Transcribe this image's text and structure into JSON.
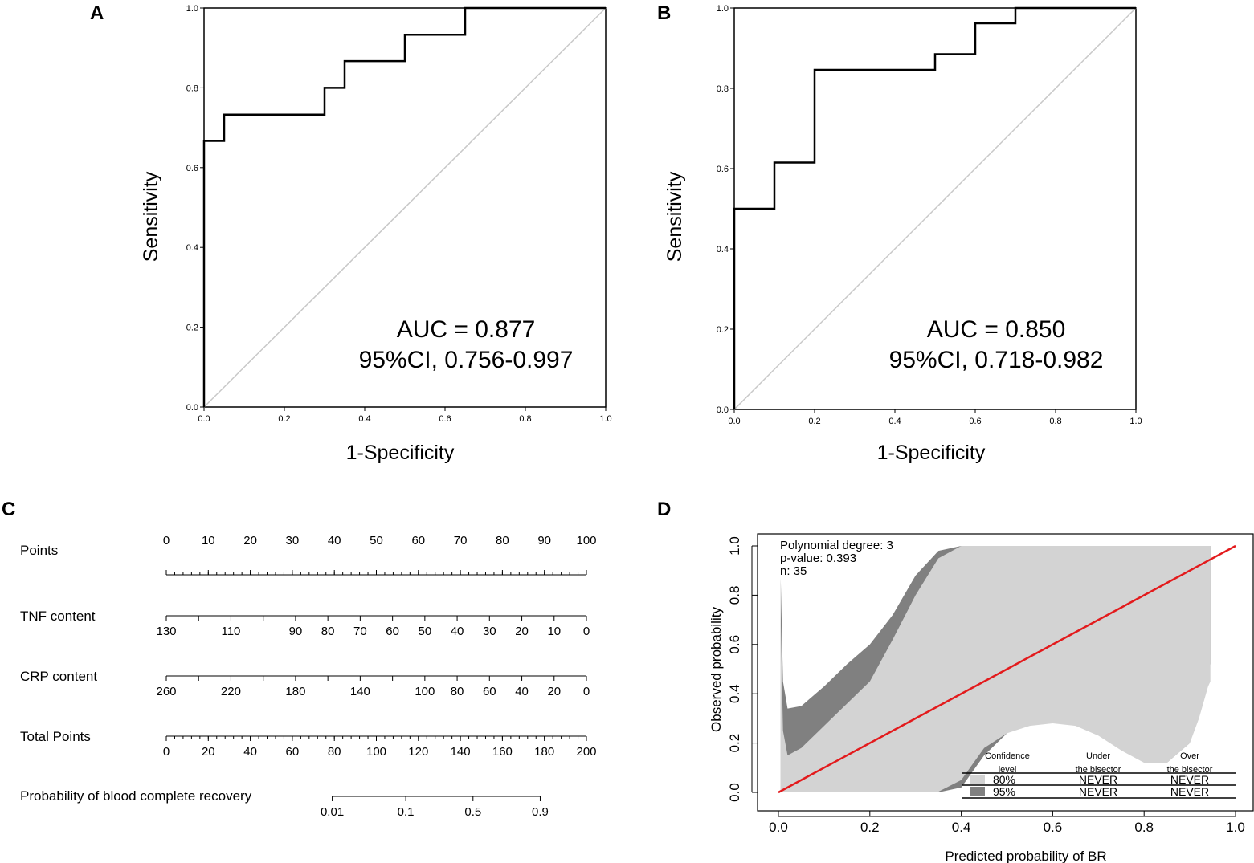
{
  "panels": {
    "A": {
      "letter": "A",
      "xlabel": "1-Specificity",
      "ylabel": "Sensitivity",
      "auc": "AUC = 0.877",
      "ci": "95%CI, 0.756-0.997"
    },
    "B": {
      "letter": "B",
      "xlabel": "1-Specificity",
      "ylabel": "Sensitivity",
      "auc": "AUC = 0.850",
      "ci": "95%CI, 0.718-0.982"
    },
    "C": {
      "letter": "C"
    },
    "D": {
      "letter": "D",
      "xlabel": "Predicted probability of BR",
      "ylabel": "Observed probability",
      "stats": [
        "Polynomial degree: 3",
        "p-value: 0.393",
        "n: 35"
      ],
      "legend": {
        "headers": [
          [
            "Confidence",
            "level"
          ],
          [
            "Under",
            "the bisector"
          ],
          [
            "Over",
            "the bisector"
          ]
        ],
        "rows": [
          {
            "level": "80%",
            "under": "NEVER",
            "over": "NEVER",
            "color": "#d3d3d3"
          },
          {
            "level": "95%",
            "under": "NEVER",
            "over": "NEVER",
            "color": "#808080"
          }
        ]
      }
    }
  },
  "chart_data": [
    {
      "type": "line",
      "panel": "A",
      "title": "",
      "xlabel": "1-Specificity",
      "ylabel": "Sensitivity",
      "xlim": [
        0,
        1
      ],
      "ylim": [
        0,
        1
      ],
      "xticks": [
        "0.0",
        "0.2",
        "0.4",
        "0.6",
        "0.8",
        "1.0"
      ],
      "yticks": [
        "0.0",
        "0.2",
        "0.4",
        "0.6",
        "0.8",
        "1.0"
      ],
      "series": [
        {
          "name": "ROC",
          "x": [
            0,
            0,
            0.05,
            0.05,
            0.3,
            0.3,
            0.35,
            0.35,
            0.5,
            0.5,
            0.65,
            0.65,
            1.0
          ],
          "y": [
            0,
            0.667,
            0.667,
            0.733,
            0.733,
            0.8,
            0.8,
            0.867,
            0.867,
            0.933,
            0.933,
            1.0,
            1.0
          ]
        },
        {
          "name": "reference",
          "x": [
            0,
            1
          ],
          "y": [
            0,
            1
          ]
        }
      ],
      "annotations": [
        "AUC = 0.877",
        "95%CI, 0.756-0.997"
      ]
    },
    {
      "type": "line",
      "panel": "B",
      "title": "",
      "xlabel": "1-Specificity",
      "ylabel": "Sensitivity",
      "xlim": [
        0,
        1
      ],
      "ylim": [
        0,
        1
      ],
      "xticks": [
        "0.0",
        "0.2",
        "0.4",
        "0.6",
        "0.8",
        "1.0"
      ],
      "yticks": [
        "0.0",
        "0.2",
        "0.4",
        "0.6",
        "0.8",
        "1.0"
      ],
      "series": [
        {
          "name": "ROC",
          "x": [
            0,
            0,
            0.1,
            0.1,
            0.2,
            0.2,
            0.5,
            0.5,
            0.6,
            0.6,
            0.7,
            0.7,
            1.0
          ],
          "y": [
            0,
            0.5,
            0.5,
            0.615,
            0.615,
            0.846,
            0.846,
            0.885,
            0.885,
            0.962,
            0.962,
            1.0,
            1.0
          ]
        },
        {
          "name": "reference",
          "x": [
            0,
            1
          ],
          "y": [
            0,
            1
          ]
        }
      ],
      "annotations": [
        "AUC = 0.850",
        "95%CI, 0.718-0.982"
      ]
    },
    {
      "type": "nomogram",
      "panel": "C",
      "axes": [
        {
          "label": "Points",
          "domain": [
            0,
            100
          ],
          "ticks": [
            {
              "t": "0",
              "v": 0
            },
            {
              "t": "10",
              "v": 10
            },
            {
              "t": "20",
              "v": 20
            },
            {
              "t": "30",
              "v": 30
            },
            {
              "t": "40",
              "v": 40
            },
            {
              "t": "50",
              "v": 50
            },
            {
              "t": "60",
              "v": 60
            },
            {
              "t": "70",
              "v": 70
            },
            {
              "t": "80",
              "v": 80
            },
            {
              "t": "90",
              "v": 90
            },
            {
              "t": "100",
              "v": 100
            }
          ]
        },
        {
          "label": "TNF content",
          "domain": [
            0,
            100
          ],
          "ticks": [
            {
              "t": "130",
              "v": 0
            },
            {
              "t": "",
              "v": 7.69
            },
            {
              "t": "110",
              "v": 15.38
            },
            {
              "t": "",
              "v": 23.08
            },
            {
              "t": "90",
              "v": 30.77
            },
            {
              "t": "80",
              "v": 38.46
            },
            {
              "t": "70",
              "v": 46.15
            },
            {
              "t": "60",
              "v": 53.85
            },
            {
              "t": "50",
              "v": 61.54
            },
            {
              "t": "40",
              "v": 69.23
            },
            {
              "t": "30",
              "v": 76.92
            },
            {
              "t": "20",
              "v": 84.62
            },
            {
              "t": "10",
              "v": 92.31
            },
            {
              "t": "0",
              "v": 100
            }
          ]
        },
        {
          "label": "CRP content",
          "domain": [
            0,
            100
          ],
          "ticks": [
            {
              "t": "260",
              "v": 0
            },
            {
              "t": "",
              "v": 7.69
            },
            {
              "t": "220",
              "v": 15.38
            },
            {
              "t": "",
              "v": 23.08
            },
            {
              "t": "180",
              "v": 30.77
            },
            {
              "t": "",
              "v": 38.46
            },
            {
              "t": "140",
              "v": 46.15
            },
            {
              "t": "",
              "v": 53.85
            },
            {
              "t": "100",
              "v": 61.54
            },
            {
              "t": "80",
              "v": 69.23
            },
            {
              "t": "60",
              "v": 76.92
            },
            {
              "t": "40",
              "v": 84.62
            },
            {
              "t": "20",
              "v": 92.31
            },
            {
              "t": "0",
              "v": 100
            }
          ]
        },
        {
          "label": "Total Points",
          "domain": [
            0,
            200
          ],
          "ticks": [
            {
              "t": "0",
              "v": 0
            },
            {
              "t": "20",
              "v": 20
            },
            {
              "t": "40",
              "v": 40
            },
            {
              "t": "60",
              "v": 60
            },
            {
              "t": "80",
              "v": 80
            },
            {
              "t": "100",
              "v": 100
            },
            {
              "t": "120",
              "v": 120
            },
            {
              "t": "140",
              "v": 140
            },
            {
              "t": "160",
              "v": 160
            },
            {
              "t": "180",
              "v": 180
            },
            {
              "t": "200",
              "v": 200
            }
          ]
        },
        {
          "label": "Probability of blood complete recovery",
          "domain": [
            0,
            200
          ],
          "ticks": [
            {
              "t": "0.01",
              "v": 79
            },
            {
              "t": "0.1",
              "v": 114
            },
            {
              "t": "0.5",
              "v": 146
            },
            {
              "t": "0.9",
              "v": 178
            }
          ]
        }
      ]
    },
    {
      "type": "area",
      "panel": "D",
      "title": "",
      "xlabel": "Predicted probability of BR",
      "ylabel": "Observed probability",
      "xlim": [
        0,
        1
      ],
      "ylim": [
        0,
        1
      ],
      "xticks": [
        "0.0",
        "0.2",
        "0.4",
        "0.6",
        "0.8",
        "1.0"
      ],
      "yticks": [
        "0.0",
        "0.2",
        "0.4",
        "0.6",
        "0.8",
        "1.0"
      ],
      "x": [
        0.005,
        0.01,
        0.02,
        0.05,
        0.1,
        0.15,
        0.2,
        0.25,
        0.3,
        0.35,
        0.4,
        0.45,
        0.5,
        0.55,
        0.6,
        0.65,
        0.7,
        0.75,
        0.8,
        0.85,
        0.9,
        0.92,
        0.94,
        0.945
      ],
      "series": [
        {
          "name": "95% upper",
          "values": [
            0.87,
            0.45,
            0.34,
            0.35,
            0.43,
            0.52,
            0.6,
            0.72,
            0.88,
            0.98,
            1.0,
            1.0,
            1.0,
            1.0,
            1.0,
            1.0,
            1.0,
            1.0,
            0.98,
            0.97,
            0.98,
            1.0,
            1.0,
            1.0
          ]
        },
        {
          "name": "80% upper",
          "values": [
            0.7,
            0.25,
            0.15,
            0.18,
            0.27,
            0.36,
            0.45,
            0.62,
            0.8,
            0.95,
            1.0,
            1.0,
            1.0,
            1.0,
            1.0,
            1.0,
            1.0,
            1.0,
            1.0,
            1.0,
            1.0,
            1.0,
            1.0,
            1.0
          ]
        },
        {
          "name": "80% lower",
          "values": [
            0,
            0,
            0,
            0,
            0,
            0,
            0,
            0,
            0,
            0.003,
            0.05,
            0.18,
            0.24,
            0.27,
            0.28,
            0.27,
            0.23,
            0.17,
            0.12,
            0.12,
            0.2,
            0.3,
            0.43,
            0.45
          ]
        },
        {
          "name": "95% lower",
          "values": [
            0,
            0,
            0,
            0,
            0,
            0,
            0,
            0,
            0,
            0,
            0.02,
            0.15,
            0.24,
            0.3,
            0.32,
            0.32,
            0.28,
            0.2,
            0.15,
            0.12,
            0.2,
            0.35,
            0.5,
            0.52
          ]
        },
        {
          "name": "bisector",
          "values": [
            0.005,
            0.01,
            0.02,
            0.05,
            0.1,
            0.15,
            0.2,
            0.25,
            0.3,
            0.35,
            0.4,
            0.45,
            0.5,
            0.55,
            0.6,
            0.65,
            0.7,
            0.75,
            0.8,
            0.85,
            0.9,
            0.92,
            0.94,
            0.945
          ]
        }
      ],
      "colors": {
        "band95": "#808080",
        "band80": "#d3d3d3",
        "bisector": "#e31a1c"
      }
    }
  ]
}
